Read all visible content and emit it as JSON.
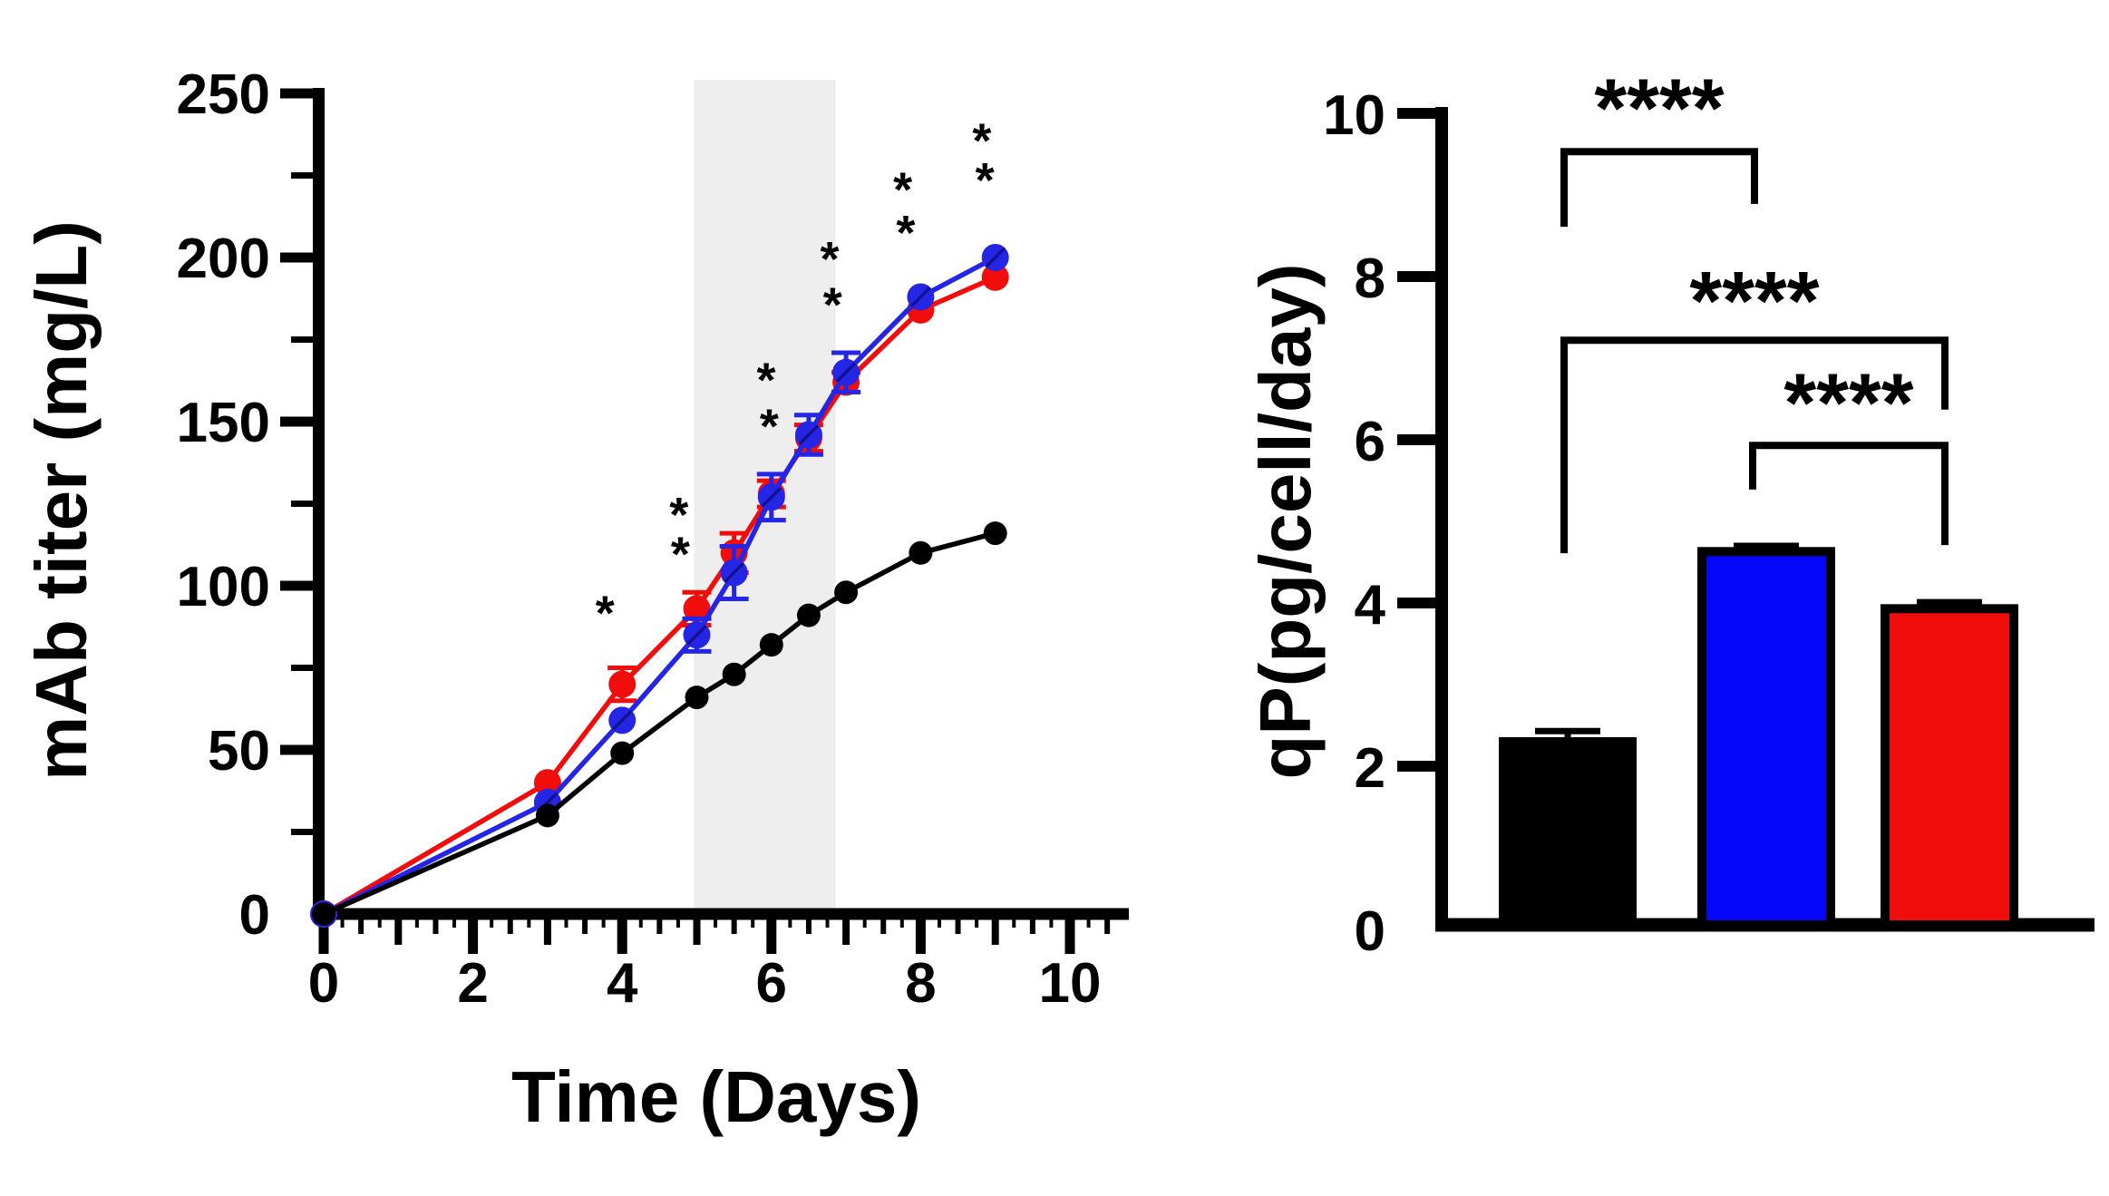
{
  "figure": {
    "background": "#FFFFFF",
    "panel_count": 2,
    "panels": [
      "mab-titer-time-course",
      "qp-specific-productivity"
    ]
  },
  "chart_data": [
    {
      "type": "line",
      "title": "",
      "xlabel": "Time (Days)",
      "ylabel": "mAb titer (mg/L)",
      "xlim": [
        0,
        10.75
      ],
      "ylim": [
        0,
        250
      ],
      "x_major_ticks": [
        0,
        2,
        4,
        6,
        8,
        10
      ],
      "x_minor_tick_step": 0.25,
      "y_major_ticks": [
        0,
        50,
        100,
        150,
        200,
        250
      ],
      "y_minor_tick_step": 25,
      "grid": false,
      "legend": "none",
      "shaded_region": {
        "x_start": 4.96,
        "x_end": 6.86,
        "color": "#EEEEEE"
      },
      "x": [
        0,
        3,
        4,
        5,
        5.5,
        6,
        6.5,
        7,
        8,
        9
      ],
      "series": [
        {
          "name": "red-condition",
          "color": "#F20D0D",
          "marker": "filled-circle",
          "values": [
            0,
            40,
            70,
            93,
            110,
            128,
            145,
            162,
            184,
            194
          ],
          "errors": [
            0,
            0,
            5,
            5,
            6,
            4,
            4,
            3,
            0,
            0
          ]
        },
        {
          "name": "blue-condition",
          "color": "#2525E6",
          "marker": "filled-circle-slash",
          "values": [
            0,
            34,
            59,
            85,
            104,
            127,
            146,
            165,
            188,
            200
          ],
          "errors": [
            0,
            0,
            0,
            5,
            8,
            7,
            6,
            6,
            0,
            0
          ]
        },
        {
          "name": "black-control",
          "color": "#000000",
          "marker": "filled-circle",
          "values": [
            0,
            30,
            49,
            66,
            73,
            82,
            91,
            98,
            110,
            116
          ],
          "errors": [
            0,
            0,
            0,
            0,
            0,
            0,
            0,
            0,
            0,
            0
          ]
        }
      ],
      "significance_marks": [
        {
          "symbol": "*",
          "color": "#F20D0D",
          "x": 3.77,
          "y": 94
        },
        {
          "symbol": "*",
          "color": "#F20D0D",
          "x": 4.76,
          "y": 124
        },
        {
          "symbol": "*",
          "color": "#F20D0D",
          "x": 5.93,
          "y": 165
        },
        {
          "symbol": "*",
          "color": "#F20D0D",
          "x": 6.78,
          "y": 202
        },
        {
          "symbol": "*",
          "color": "#F20D0D",
          "x": 7.76,
          "y": 223
        },
        {
          "symbol": "*",
          "color": "#F20D0D",
          "x": 8.82,
          "y": 238
        },
        {
          "symbol": "*",
          "color": "#3B3BF0",
          "x": 4.78,
          "y": 112
        },
        {
          "symbol": "*",
          "color": "#3B3BF0",
          "x": 5.97,
          "y": 151
        },
        {
          "symbol": "*",
          "color": "#3B3BF0",
          "x": 6.82,
          "y": 188
        },
        {
          "symbol": "*",
          "color": "#3B3BF0",
          "x": 7.8,
          "y": 210
        },
        {
          "symbol": "*",
          "color": "#3B3BF0",
          "x": 8.86,
          "y": 226
        }
      ]
    },
    {
      "type": "bar",
      "title": "",
      "xlabel": "",
      "ylabel": "qP(pg/cell/day)",
      "ylim": [
        0,
        10
      ],
      "y_ticks": [
        0,
        2,
        4,
        6,
        8,
        10
      ],
      "grid": false,
      "legend": "none",
      "bars": [
        {
          "name": "black-control",
          "color": "#000000",
          "value": 2.3,
          "error": 0.13
        },
        {
          "name": "blue-condition",
          "color": "#0505FA",
          "value": 4.63,
          "error": 0.07
        },
        {
          "name": "red-condition",
          "color": "#F20D0D",
          "value": 3.93,
          "error": 0.08
        }
      ],
      "significance_brackets": [
        {
          "between": [
            0,
            1
          ],
          "label": "****",
          "bar_y": 9.53,
          "left_leg_y": 8.61,
          "right_leg_y": 8.89,
          "label_y": 10.22
        },
        {
          "between": [
            0,
            2
          ],
          "label": "****",
          "bar_y": 7.22,
          "left_leg_y": 4.61,
          "right_leg_y": 6.37,
          "label_y": 7.86
        },
        {
          "between": [
            1,
            2
          ],
          "label": "****",
          "bar_y": 5.93,
          "left_leg_y": 5.39,
          "right_leg_y": 4.71,
          "label_y": 6.61
        }
      ]
    }
  ]
}
